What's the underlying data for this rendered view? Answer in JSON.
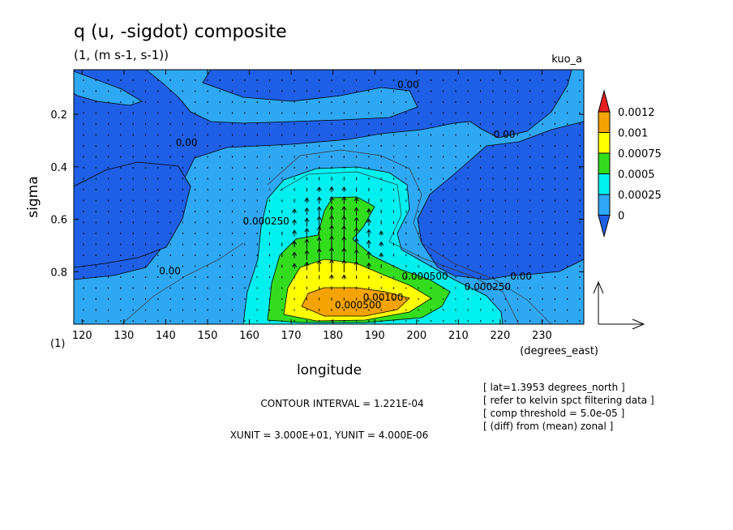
{
  "chart_data": {
    "type": "heatmap",
    "title": "q (u, -sigdot) composite",
    "subtitle": "(1, (m s-1, s-1))",
    "dataset_label": "kuo_a",
    "xlabel": "longitude",
    "x_units": "(degrees_east)",
    "ylabel": "sigma",
    "y_units": "(1)",
    "xlim": [
      118,
      240
    ],
    "ylim": [
      1.0,
      0.03
    ],
    "x_ticks": [
      120,
      130,
      140,
      150,
      160,
      170,
      180,
      190,
      200,
      210,
      220,
      230
    ],
    "y_ticks": [
      0.2,
      0.4,
      0.6,
      0.8
    ],
    "colorbar": {
      "levels": [
        0,
        0.00025,
        0.0005,
        0.00075,
        0.001,
        0.0012
      ],
      "labels": [
        "0",
        "0.00025",
        "0.0005",
        "0.00075",
        "0.001",
        "0.0012"
      ],
      "colors": [
        "#1e5fe6",
        "#2fa8f4",
        "#00f0f0",
        "#33dd1e",
        "#ffff00",
        "#f5a300",
        "#e61e1e"
      ]
    },
    "contour_labels": [
      {
        "text": "0.00",
        "x": 198,
        "y": 0.1
      },
      {
        "text": "0.00",
        "x": 221,
        "y": 0.29
      },
      {
        "text": "0.00",
        "x": 145,
        "y": 0.32
      },
      {
        "text": "0.00",
        "x": 141,
        "y": 0.81
      },
      {
        "text": "0.000250",
        "x": 164,
        "y": 0.62
      },
      {
        "text": "0.000500",
        "x": 202,
        "y": 0.83
      },
      {
        "text": "0.000250",
        "x": 217,
        "y": 0.87
      },
      {
        "text": "0.00",
        "x": 225,
        "y": 0.83
      },
      {
        "text": "0.00100",
        "x": 192,
        "y": 0.91
      },
      {
        "text": "0.000500",
        "x": 186,
        "y": 0.94
      }
    ],
    "vector_reference": {
      "xunit": "3.000E+01",
      "yunit": "4.000E-06"
    }
  },
  "annotations": {
    "contour_interval": "CONTOUR INTERVAL = 1.221E-04",
    "units_line": "XUNIT = 3.000E+01, YUNIT = 4.000E-06",
    "info_lines": [
      "[ lat=1.3953 degrees_north ]",
      "[ refer to kelvin spct filtering data ]",
      "[ comp threshold = 5.0e-05 ]",
      "[ (diff) from (mean) zonal ]"
    ]
  }
}
